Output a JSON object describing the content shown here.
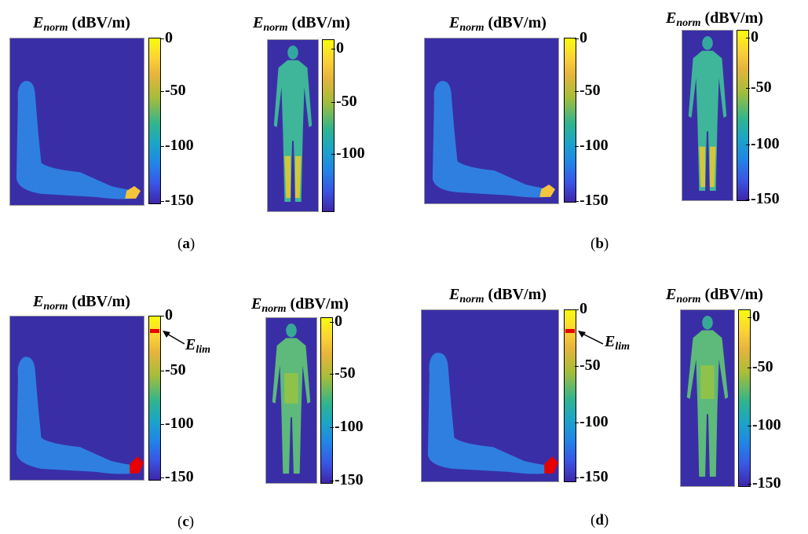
{
  "title": {
    "var": "E",
    "sub": "norm",
    "unit": " (dBV/m)"
  },
  "ticks": {
    "a_arm": [
      "0",
      "-50",
      "-100",
      "-150"
    ],
    "a_body": [
      "0",
      "-50",
      "-100"
    ],
    "b_arm": [
      "0",
      "-50",
      "-100",
      "-150"
    ],
    "b_body": [
      "0",
      "-50",
      "-100",
      "-150"
    ],
    "c_arm": [
      "0",
      "-50",
      "-100",
      "-150"
    ],
    "c_body": [
      "0",
      "-50",
      "-100",
      "-150"
    ],
    "d_arm": [
      "0",
      "-50",
      "-100",
      "-150"
    ],
    "d_body": [
      "0",
      "-50",
      "-100",
      "-150"
    ]
  },
  "panels": {
    "a": "a",
    "b": "b",
    "c": "c",
    "d": "d"
  },
  "elim": {
    "var": "E",
    "sub": "lim"
  },
  "colors": {
    "background": "#3a2ea6",
    "limit_marker": "#e60000"
  }
}
